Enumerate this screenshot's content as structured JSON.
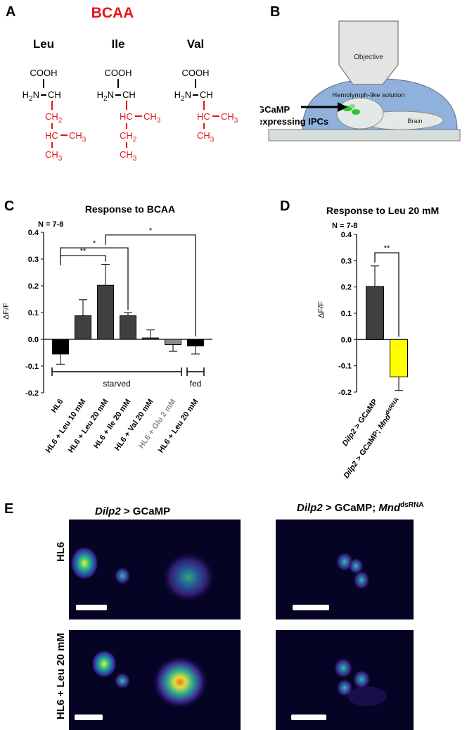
{
  "panels": {
    "a": "A",
    "b": "B",
    "c": "C",
    "d": "D",
    "e": "E"
  },
  "panel_a": {
    "title": "BCAA",
    "title_color": "#e8131b",
    "side_color": "#e8131b",
    "amino_acids": [
      {
        "name": "Leu",
        "backbone": [
          "COOH",
          "H2N",
          "CH"
        ],
        "side_chain": [
          "CH2",
          "HC",
          "CH3",
          "CH3"
        ]
      },
      {
        "name": "Ile",
        "backbone": [
          "COOH",
          "H2N",
          "CH"
        ],
        "side_chain": [
          "HC",
          "CH3",
          "CH2",
          "CH3"
        ]
      },
      {
        "name": "Val",
        "backbone": [
          "COOH",
          "H2N",
          "CH"
        ],
        "side_chain": [
          "HC",
          "CH3",
          "CH3"
        ]
      }
    ]
  },
  "panel_b": {
    "objective": "Objective",
    "solution": "Hemolymph-like solution",
    "brain": "Brain",
    "label_line1": "GCaMP",
    "label_line2": "expressing IPCs",
    "drop_color": "#8fb1db"
  },
  "chart_data": [
    {
      "type": "bar",
      "title": "Response to BCAA",
      "n_label": "N = 7-8",
      "ylabel": "ΔF/F",
      "ylim": [
        -0.2,
        0.4
      ],
      "yticks": [
        "0.4",
        "0.3",
        "0.2",
        "0.1",
        "0.0",
        "-0.1",
        "-0.2"
      ],
      "categories": [
        "HL6",
        "HL6 + Leu 10 mM",
        "HL6 + Leu 20 mM",
        "HL6 + Ile 20 mM",
        "HL6 + Val 20 mM",
        "HL6 + Glu 2 mM",
        "HL6 + Leu 20 mM"
      ],
      "values": [
        -0.055,
        0.088,
        0.202,
        0.088,
        0.005,
        -0.02,
        -0.025
      ],
      "errors": [
        0.038,
        0.06,
        0.078,
        0.012,
        0.03,
        0.025,
        0.03
      ],
      "colors": [
        "#000000",
        "#404040",
        "#404040",
        "#404040",
        "#404040",
        "#8a8a8a",
        "#000000"
      ],
      "label_colors": [
        "#000000",
        "#000000",
        "#000000",
        "#000000",
        "#000000",
        "#8a8a8a",
        "#000000"
      ],
      "groups": [
        {
          "label": "starved",
          "from": 0,
          "to": 5
        },
        {
          "label": "fed",
          "from": 6,
          "to": 6
        }
      ],
      "significance": [
        {
          "from": 0,
          "to": 2,
          "label": "**",
          "y": 0.313
        },
        {
          "from": 0,
          "to": 3,
          "label": "*",
          "y": 0.342
        },
        {
          "from": 2,
          "to": 6,
          "label": "*",
          "y": 0.39
        }
      ]
    },
    {
      "type": "bar",
      "title": "Response to Leu 20 mM",
      "n_label": "N = 7-8",
      "ylabel": "ΔF/F",
      "ylim": [
        -0.2,
        0.4
      ],
      "yticks": [
        "0.4",
        "0.3",
        "0.2",
        "0.1",
        "0.0",
        "-0.1",
        "-0.2"
      ],
      "categories": [
        "Dilp2 > GCaMP",
        "Dilp2 > GCaMP; Mnd"
      ],
      "category_italics": [
        "Dilp2",
        "Dilp2"
      ],
      "category_rest": [
        " > GCaMP",
        " > GCaMP; "
      ],
      "category_italic2": [
        "",
        "Mnd"
      ],
      "category_sup": [
        "",
        "dsRNA"
      ],
      "values": [
        0.202,
        -0.142
      ],
      "errors": [
        0.078,
        0.052
      ],
      "colors": [
        "#404040",
        "#ffff00"
      ],
      "significance": [
        {
          "from": 0,
          "to": 1,
          "label": "**",
          "y": 0.33
        }
      ]
    }
  ],
  "panel_e": {
    "col1": {
      "italic": "Dilp2",
      "rest": " > GCaMP"
    },
    "col2": {
      "italic": "Dilp2",
      "rest": " > GCaMP; ",
      "italic2": "Mnd",
      "sup": "dsRNA"
    },
    "rows": [
      "HL6",
      "HL6 + Leu 20 mM"
    ]
  }
}
